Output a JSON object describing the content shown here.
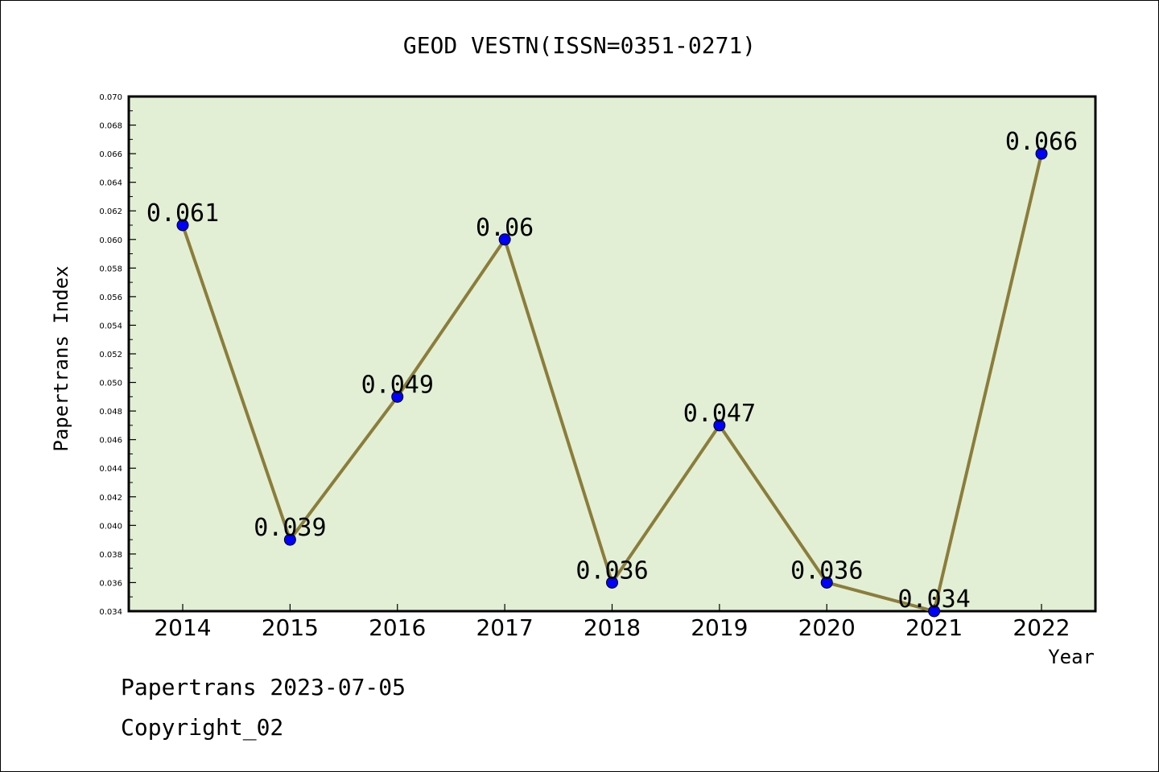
{
  "chart_data": {
    "type": "line",
    "title": "GEOD VESTN(ISSN=0351-0271)",
    "xlabel": "Year",
    "ylabel": "Papertrans Index",
    "categories": [
      "2014",
      "2015",
      "2016",
      "2017",
      "2018",
      "2019",
      "2020",
      "2021",
      "2022"
    ],
    "values": [
      0.061,
      0.039,
      0.049,
      0.06,
      0.036,
      0.047,
      0.036,
      0.034,
      0.066
    ],
    "data_labels": [
      "0.061",
      "0.039",
      "0.049",
      "0.06",
      "0.036",
      "0.047",
      "0.036",
      "0.034",
      "0.066"
    ],
    "ylim": [
      0.034,
      0.07
    ],
    "yticks": [
      "0.034",
      "0.036",
      "0.038",
      "0.040",
      "0.042",
      "0.044",
      "0.046",
      "0.048",
      "0.050",
      "0.052",
      "0.054",
      "0.056",
      "0.058",
      "0.060",
      "0.062",
      "0.064",
      "0.066",
      "0.068",
      "0.070"
    ],
    "grid": false,
    "colors": {
      "plot_background": "#e2efd5",
      "line": "#8b7d3a",
      "marker": "#0000ff"
    }
  },
  "footer": {
    "line1": "Papertrans 2023-07-05",
    "line2": "Copyright_02"
  }
}
